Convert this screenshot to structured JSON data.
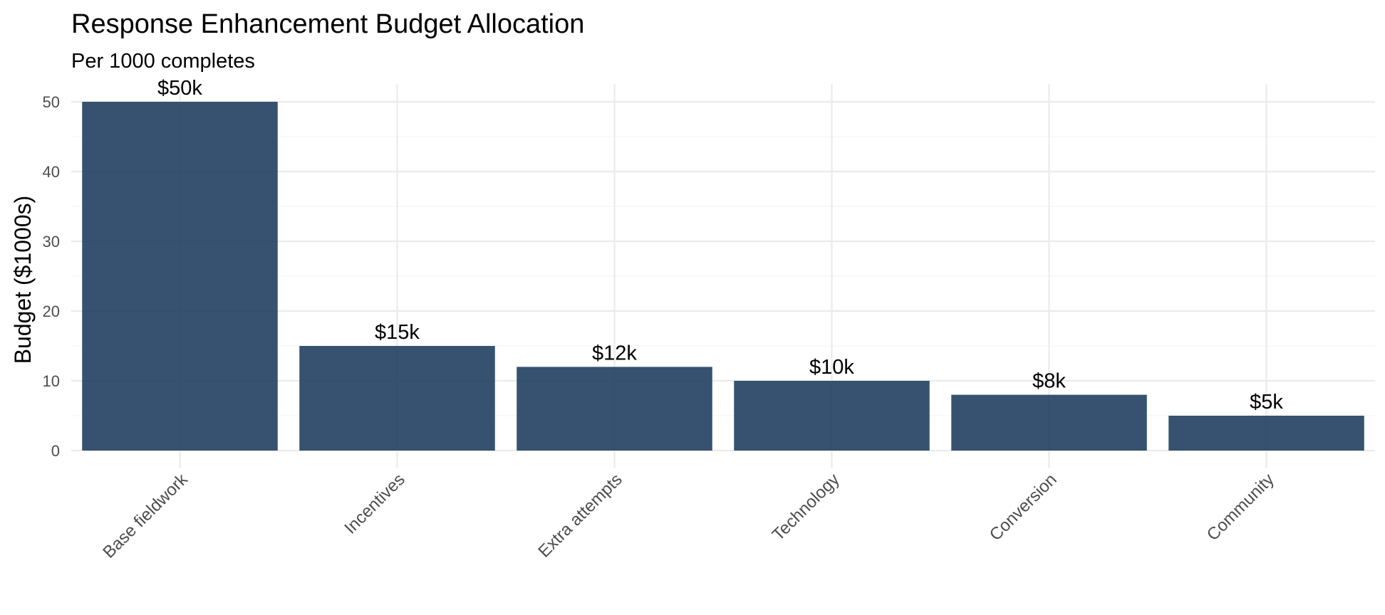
{
  "chart_data": {
    "type": "bar",
    "title": "Response Enhancement Budget Allocation",
    "subtitle": "Per 1000 completes",
    "xlabel": "",
    "ylabel": "Budget ($1000s)",
    "categories": [
      "Base fieldwork",
      "Incentives",
      "Extra attempts",
      "Technology",
      "Conversion",
      "Community"
    ],
    "values": [
      50,
      15,
      12,
      10,
      8,
      5
    ],
    "data_labels": [
      "$50k",
      "$15k",
      "$12k",
      "$10k",
      "$8k",
      "$5k"
    ],
    "ylim": [
      0,
      52.5
    ],
    "yticks": [
      0,
      10,
      20,
      30,
      40,
      50
    ],
    "grid": true,
    "legend": "none",
    "bar_color": "#1a3a5c",
    "bar_opacity": 0.88
  }
}
